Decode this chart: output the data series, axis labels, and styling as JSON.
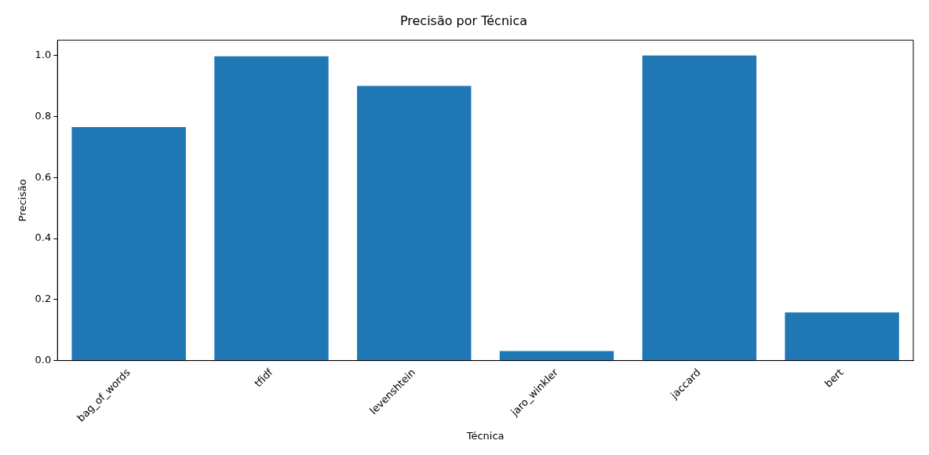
{
  "chart_data": {
    "type": "bar",
    "title": "Precisão por Técnica",
    "xlabel": "Técnica",
    "ylabel": "Precisão",
    "categories": [
      "bag_of_words",
      "tfidf",
      "levenshtein",
      "jaro_winkler",
      "jaccard",
      "bert"
    ],
    "values": [
      0.765,
      0.997,
      0.9,
      0.031,
      1.0,
      0.158
    ],
    "color": "#1f77b4",
    "ylim": [
      0,
      1.05
    ],
    "yticks": [
      {
        "value": 0,
        "label": "0.0"
      },
      0.2,
      0.4,
      0.6,
      0.8,
      {
        "value": 1,
        "label": "1.0"
      }
    ],
    "grid": false,
    "legend": false
  }
}
